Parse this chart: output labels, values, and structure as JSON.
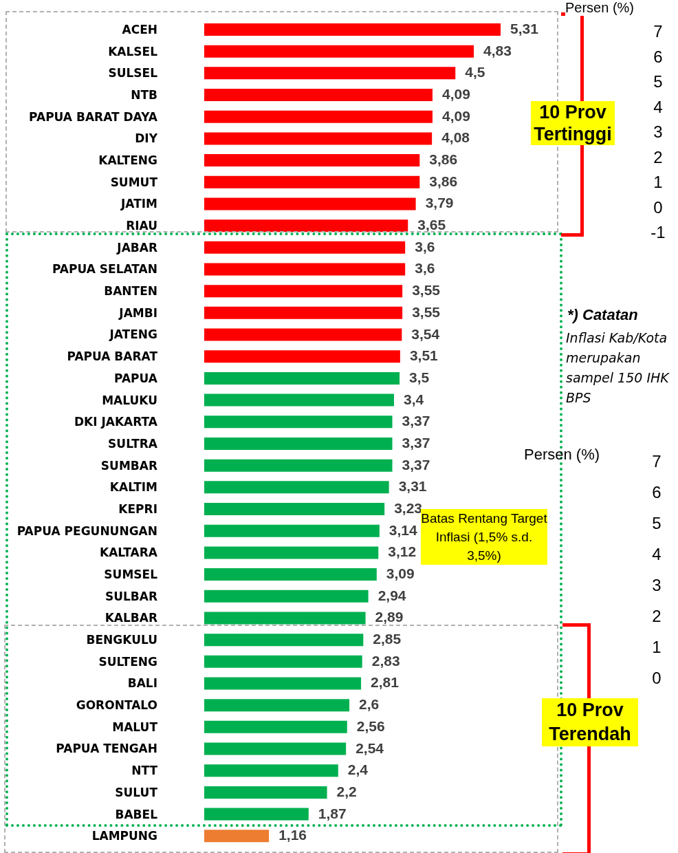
{
  "chart_data": {
    "type": "bar",
    "orientation": "horizontal",
    "categories": [
      "ACEH",
      "KALSEL",
      "SULSEL",
      "NTB",
      "PAPUA BARAT DAYA",
      "DIY",
      "KALTENG",
      "SUMUT",
      "JATIM",
      "RIAU",
      "JABAR",
      "PAPUA SELATAN",
      "BANTEN",
      "JAMBI",
      "JATENG",
      "PAPUA BARAT",
      "PAPUA",
      "MALUKU",
      "DKI JAKARTA",
      "SULTRA",
      "SUMBAR",
      "KALTIM",
      "KEPRI",
      "PAPUA PEGUNUNGAN",
      "KALTARA",
      "SUMSEL",
      "SULBAR",
      "KALBAR",
      "BENGKULU",
      "SULTENG",
      "BALI",
      "GORONTALO",
      "MALUT",
      "PAPUA TENGAH",
      "NTT",
      "SULUT",
      "BABEL",
      "LAMPUNG"
    ],
    "values": [
      5.31,
      4.83,
      4.5,
      4.09,
      4.09,
      4.08,
      3.86,
      3.86,
      3.79,
      3.65,
      3.6,
      3.6,
      3.55,
      3.55,
      3.54,
      3.51,
      3.5,
      3.4,
      3.37,
      3.37,
      3.37,
      3.31,
      3.23,
      3.14,
      3.12,
      3.09,
      2.94,
      2.89,
      2.85,
      2.83,
      2.81,
      2.6,
      2.56,
      2.54,
      2.4,
      2.2,
      1.87,
      1.16
    ],
    "value_labels": [
      "5,31",
      "4,83",
      "4,5",
      "4,09",
      "4,09",
      "4,08",
      "3,86",
      "3,86",
      "3,79",
      "3,65",
      "3,6",
      "3,6",
      "3,55",
      "3,55",
      "3,54",
      "3,51",
      "3,5",
      "3,4",
      "3,37",
      "3,37",
      "3,37",
      "3,31",
      "3,23",
      "3,14",
      "3,12",
      "3,09",
      "2,94",
      "2,89",
      "2,85",
      "2,83",
      "2,81",
      "2,6",
      "2,56",
      "2,54",
      "2,4",
      "2,2",
      "1,87",
      "1,16"
    ],
    "colors": [
      "#ff0000",
      "#ff0000",
      "#ff0000",
      "#ff0000",
      "#ff0000",
      "#ff0000",
      "#ff0000",
      "#ff0000",
      "#ff0000",
      "#ff0000",
      "#ff0000",
      "#ff0000",
      "#ff0000",
      "#ff0000",
      "#ff0000",
      "#ff0000",
      "#00b050",
      "#00b050",
      "#00b050",
      "#00b050",
      "#00b050",
      "#00b050",
      "#00b050",
      "#00b050",
      "#00b050",
      "#00b050",
      "#00b050",
      "#00b050",
      "#00b050",
      "#00b050",
      "#00b050",
      "#00b050",
      "#00b050",
      "#00b050",
      "#00b050",
      "#00b050",
      "#00b050",
      "#ed7d31"
    ],
    "tick_labels": "y",
    "annotations": [
      "10 Prov Tertinggi",
      "Batas Rentang Target Inflasi (1,5% s.d. 3,5%)",
      "10 Prov Terendah",
      "*) Catatan",
      "Inflasi Kab/Kota merupakan sampel 150 IHK BPS",
      "Persen (%)",
      "7 6 5 4 3 2 1 0 -1",
      "Persen (%)",
      "7 6 5 4 3 2 1 0"
    ]
  }
}
